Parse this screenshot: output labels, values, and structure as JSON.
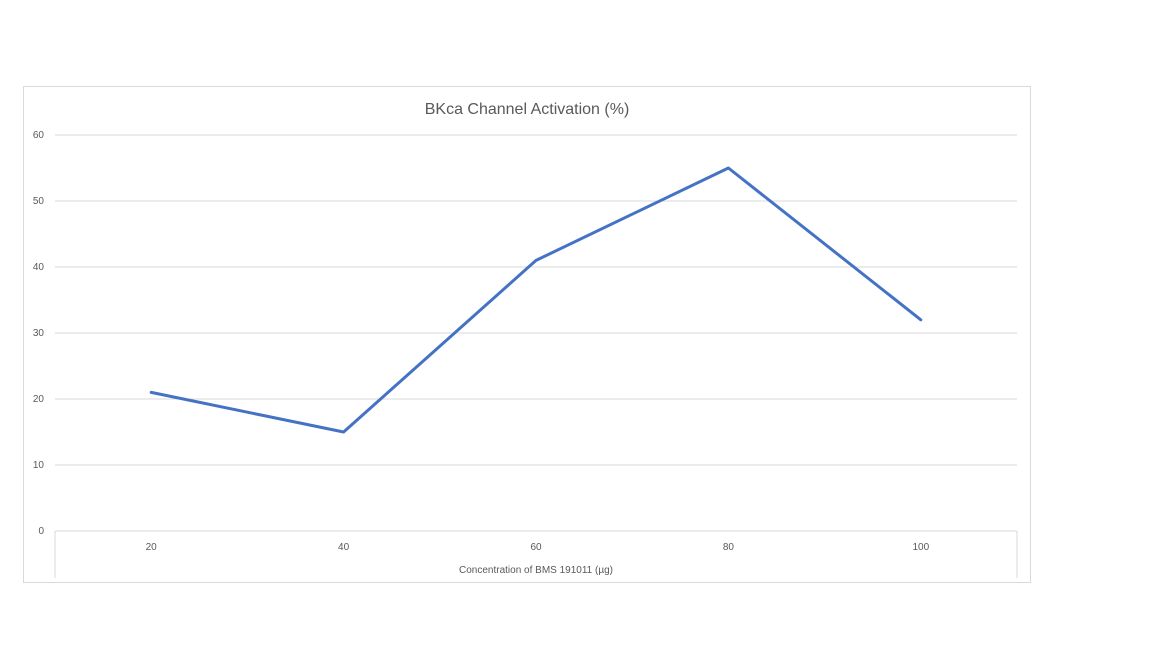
{
  "chart_data": {
    "type": "line",
    "title": "BKca Channel Activation (%)",
    "xlabel": "Concentration of BMS 191011 (µg)",
    "ylabel": "",
    "categories": [
      "20",
      "40",
      "60",
      "80",
      "100"
    ],
    "series": [
      {
        "values": [
          21,
          15,
          41,
          55,
          32
        ],
        "color": "#4472c4"
      }
    ],
    "ylim": [
      0,
      60
    ],
    "yticks": [
      "0",
      "10",
      "20",
      "30",
      "40",
      "50",
      "60"
    ],
    "grid": true,
    "legend": "none"
  }
}
